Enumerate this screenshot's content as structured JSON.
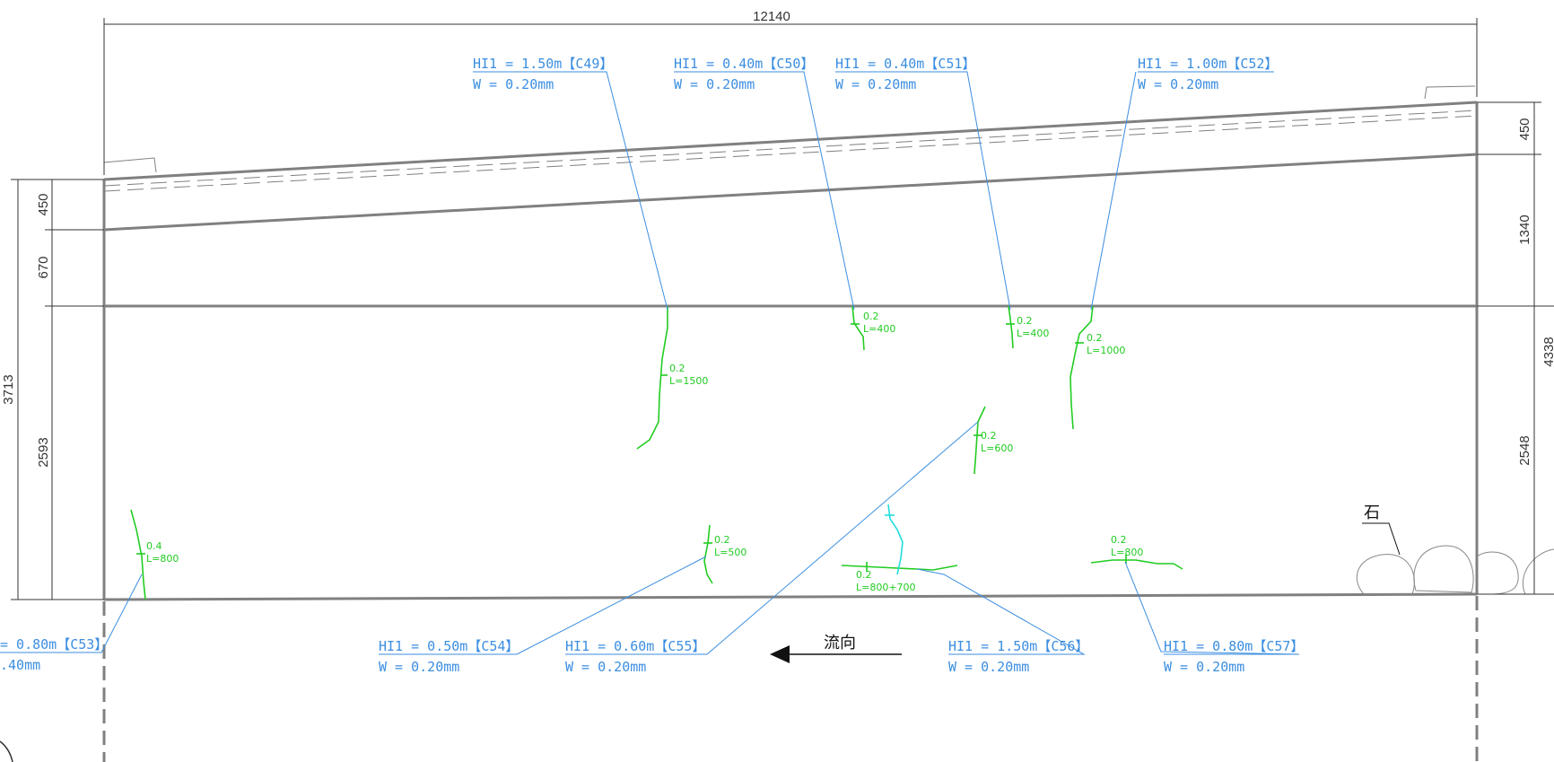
{
  "dimensions": {
    "top_total": "12140",
    "left_total": "3713",
    "left_1": "450",
    "left_2": "670",
    "left_3": "2593",
    "right_1": "450",
    "right_2": "1340",
    "right_3": "2548",
    "right_total_partial": "4338"
  },
  "crack_labels": [
    {
      "id": "C49",
      "hi": "HI1 = 1.50m【C49】",
      "w": "W = 0.20mm"
    },
    {
      "id": "C50",
      "hi": "HI1 = 0.40m【C50】",
      "w": "W = 0.20mm"
    },
    {
      "id": "C51",
      "hi": "HI1 = 0.40m【C51】",
      "w": "W = 0.20mm"
    },
    {
      "id": "C52",
      "hi": "HI1 = 1.00m【C52】",
      "w": "W = 0.20mm"
    },
    {
      "id": "C53",
      "hi": "= 0.80m【C53】",
      "w": ".40mm"
    },
    {
      "id": "C54",
      "hi": "HI1 = 0.50m【C54】",
      "w": "W = 0.20mm"
    },
    {
      "id": "C55",
      "hi": "HI1 = 0.60m【C55】",
      "w": "W = 0.20mm"
    },
    {
      "id": "C56",
      "hi": "HI1 = 1.50m【C56】",
      "w": "W = 0.20mm"
    },
    {
      "id": "C57",
      "hi": "HI1 = 0.80m【C57】",
      "w": "W = 0.20mm"
    }
  ],
  "crack_annotations": [
    {
      "w": "0.2",
      "l": "L=1500"
    },
    {
      "w": "0.2",
      "l": "L=400"
    },
    {
      "w": "0.2",
      "l": "L=400"
    },
    {
      "w": "0.2",
      "l": "L=1000"
    },
    {
      "w": "0.2",
      "l": "L=600"
    },
    {
      "w": "0.4",
      "l": "L=800"
    },
    {
      "w": "0.2",
      "l": "L=500"
    },
    {
      "w": "0.2",
      "l": "L=800+700"
    },
    {
      "w": "0.2",
      "l": "L=800"
    }
  ],
  "flow_label": "流向",
  "stone_label": "石",
  "colors": {
    "outline": "#808080",
    "dim": "#333333",
    "label": "#3b8ee0",
    "crack": "#22cc22",
    "crack_alt": "#22dddd"
  }
}
